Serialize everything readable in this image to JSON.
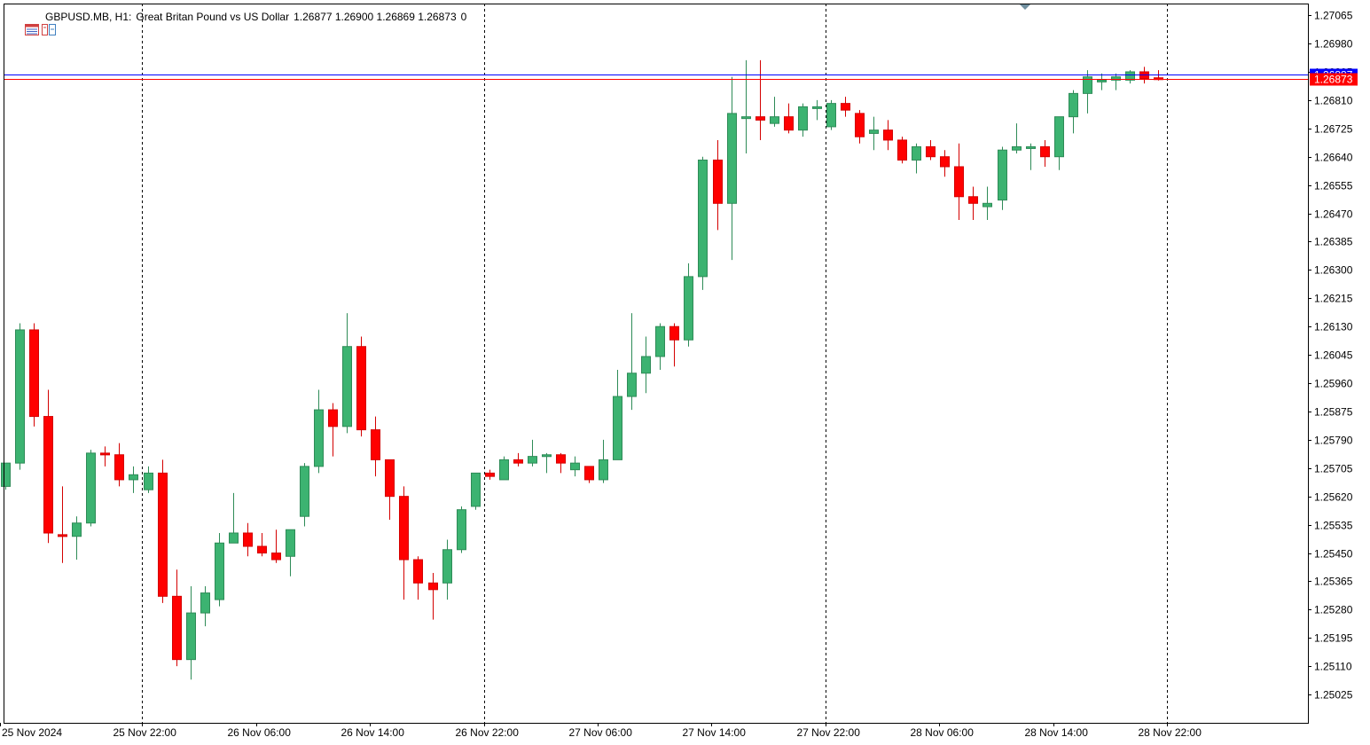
{
  "header": {
    "symbol": "GBPUSD.MB, H1:",
    "description": "Great Britan Pound vs US Dollar",
    "ohlc": "1.26877 1.26900 1.26869 1.26873",
    "volume": "0",
    "icons": [
      "table-icon",
      "chart-switch-icon"
    ]
  },
  "colors": {
    "bull": "#3cb371",
    "bear": "#ff0000",
    "wick_bull": "#2e8b57",
    "wick_bear": "#d40000",
    "ask_line": "#0000ff",
    "bid_line": "#ff0000",
    "grid": "#000000",
    "axis": "#000000"
  },
  "price_labels": {
    "ask": "1.26887",
    "bid": "1.26873"
  },
  "chart_data": {
    "type": "candlestick",
    "ylim": [
      1.2494,
      1.271
    ],
    "y_ticks": [
      "1.27065",
      "1.26980",
      "1.26895",
      "1.26810",
      "1.26725",
      "1.26640",
      "1.26555",
      "1.26470",
      "1.26385",
      "1.26300",
      "1.26215",
      "1.26130",
      "1.26045",
      "1.25960",
      "1.25875",
      "1.25790",
      "1.25705",
      "1.25620",
      "1.25535",
      "1.25450",
      "1.25365",
      "1.25280",
      "1.25195",
      "1.25110",
      "1.25025"
    ],
    "x_labels": [
      {
        "text": "25 Nov 2024",
        "bar": 0
      },
      {
        "text": "25 Nov 22:00",
        "bar": 10
      },
      {
        "text": "26 Nov 06:00",
        "bar": 18
      },
      {
        "text": "26 Nov 14:00",
        "bar": 26
      },
      {
        "text": "26 Nov 22:00",
        "bar": 34
      },
      {
        "text": "27 Nov 06:00",
        "bar": 42
      },
      {
        "text": "27 Nov 14:00",
        "bar": 50
      },
      {
        "text": "27 Nov 22:00",
        "bar": 58
      },
      {
        "text": "28 Nov 06:00",
        "bar": 66
      },
      {
        "text": "28 Nov 14:00",
        "bar": 74
      },
      {
        "text": "28 Nov 22:00",
        "bar": 82
      }
    ],
    "day_separators": [
      10,
      34,
      58,
      82
    ],
    "ask_price": 1.26887,
    "bid_price": 1.26873,
    "candles": [
      {
        "o": 1.2565,
        "h": 1.2572,
        "l": 1.2564,
        "c": 1.2572
      },
      {
        "o": 1.2572,
        "h": 1.2614,
        "l": 1.257,
        "c": 1.2612
      },
      {
        "o": 1.2612,
        "h": 1.2614,
        "l": 1.2583,
        "c": 1.2586
      },
      {
        "o": 1.2586,
        "h": 1.2594,
        "l": 1.2548,
        "c": 1.2551
      },
      {
        "o": 1.25505,
        "h": 1.2565,
        "l": 1.2542,
        "c": 1.255
      },
      {
        "o": 1.255,
        "h": 1.2556,
        "l": 1.2543,
        "c": 1.2554
      },
      {
        "o": 1.2554,
        "h": 1.2576,
        "l": 1.2553,
        "c": 1.2575
      },
      {
        "o": 1.2575,
        "h": 1.2577,
        "l": 1.2571,
        "c": 1.25745
      },
      {
        "o": 1.25745,
        "h": 1.2578,
        "l": 1.2565,
        "c": 1.2567
      },
      {
        "o": 1.2567,
        "h": 1.2571,
        "l": 1.2563,
        "c": 1.25685
      },
      {
        "o": 1.2564,
        "h": 1.2571,
        "l": 1.2563,
        "c": 1.2569
      },
      {
        "o": 1.2569,
        "h": 1.2573,
        "l": 1.253,
        "c": 1.2532
      },
      {
        "o": 1.2532,
        "h": 1.254,
        "l": 1.2511,
        "c": 1.2513
      },
      {
        "o": 1.2513,
        "h": 1.2535,
        "l": 1.2507,
        "c": 1.2527
      },
      {
        "o": 1.2527,
        "h": 1.2535,
        "l": 1.2523,
        "c": 1.2533
      },
      {
        "o": 1.2531,
        "h": 1.2551,
        "l": 1.2529,
        "c": 1.2548
      },
      {
        "o": 1.2548,
        "h": 1.2563,
        "l": 1.2548,
        "c": 1.2551
      },
      {
        "o": 1.2551,
        "h": 1.2554,
        "l": 1.2544,
        "c": 1.2547
      },
      {
        "o": 1.2547,
        "h": 1.2551,
        "l": 1.2544,
        "c": 1.2545
      },
      {
        "o": 1.2545,
        "h": 1.2552,
        "l": 1.2542,
        "c": 1.2543
      },
      {
        "o": 1.2544,
        "h": 1.2552,
        "l": 1.2538,
        "c": 1.2552
      },
      {
        "o": 1.2556,
        "h": 1.2572,
        "l": 1.2553,
        "c": 1.2571
      },
      {
        "o": 1.2571,
        "h": 1.2594,
        "l": 1.2569,
        "c": 1.2588
      },
      {
        "o": 1.2588,
        "h": 1.259,
        "l": 1.2574,
        "c": 1.2583
      },
      {
        "o": 1.2583,
        "h": 1.2617,
        "l": 1.2581,
        "c": 1.2607
      },
      {
        "o": 1.2607,
        "h": 1.261,
        "l": 1.258,
        "c": 1.2582
      },
      {
        "o": 1.2582,
        "h": 1.2586,
        "l": 1.2568,
        "c": 1.2573
      },
      {
        "o": 1.2573,
        "h": 1.2573,
        "l": 1.2555,
        "c": 1.2562
      },
      {
        "o": 1.2562,
        "h": 1.2565,
        "l": 1.2531,
        "c": 1.2543
      },
      {
        "o": 1.2543,
        "h": 1.2544,
        "l": 1.2531,
        "c": 1.2536
      },
      {
        "o": 1.2536,
        "h": 1.2539,
        "l": 1.2525,
        "c": 1.2534
      },
      {
        "o": 1.2536,
        "h": 1.2549,
        "l": 1.2531,
        "c": 1.2546
      },
      {
        "o": 1.2546,
        "h": 1.2559,
        "l": 1.2545,
        "c": 1.2558
      },
      {
        "o": 1.2559,
        "h": 1.2569,
        "l": 1.2558,
        "c": 1.2569
      },
      {
        "o": 1.2569,
        "h": 1.257,
        "l": 1.2567,
        "c": 1.2568
      },
      {
        "o": 1.2567,
        "h": 1.2574,
        "l": 1.2567,
        "c": 1.2573
      },
      {
        "o": 1.2573,
        "h": 1.2575,
        "l": 1.2571,
        "c": 1.2572
      },
      {
        "o": 1.2572,
        "h": 1.2579,
        "l": 1.2571,
        "c": 1.2574
      },
      {
        "o": 1.2574,
        "h": 1.2575,
        "l": 1.2569,
        "c": 1.25745
      },
      {
        "o": 1.25745,
        "h": 1.2575,
        "l": 1.2569,
        "c": 1.2572
      },
      {
        "o": 1.257,
        "h": 1.2574,
        "l": 1.2568,
        "c": 1.2572
      },
      {
        "o": 1.2571,
        "h": 1.2571,
        "l": 1.2566,
        "c": 1.2567
      },
      {
        "o": 1.2567,
        "h": 1.2579,
        "l": 1.2566,
        "c": 1.2573
      },
      {
        "o": 1.2573,
        "h": 1.26,
        "l": 1.2573,
        "c": 1.2592
      },
      {
        "o": 1.2592,
        "h": 1.2617,
        "l": 1.2588,
        "c": 1.2599
      },
      {
        "o": 1.2599,
        "h": 1.261,
        "l": 1.2593,
        "c": 1.2604
      },
      {
        "o": 1.2604,
        "h": 1.2614,
        "l": 1.26,
        "c": 1.2613
      },
      {
        "o": 1.2613,
        "h": 1.2614,
        "l": 1.2601,
        "c": 1.2609
      },
      {
        "o": 1.2609,
        "h": 1.2632,
        "l": 1.2607,
        "c": 1.2628
      },
      {
        "o": 1.2628,
        "h": 1.2664,
        "l": 1.2624,
        "c": 1.2663
      },
      {
        "o": 1.2663,
        "h": 1.2669,
        "l": 1.2642,
        "c": 1.265
      },
      {
        "o": 1.265,
        "h": 1.2688,
        "l": 1.2633,
        "c": 1.2677
      },
      {
        "o": 1.2676,
        "h": 1.2693,
        "l": 1.2665,
        "c": 1.2676
      },
      {
        "o": 1.2676,
        "h": 1.2693,
        "l": 1.2669,
        "c": 1.2675
      },
      {
        "o": 1.2674,
        "h": 1.2682,
        "l": 1.2673,
        "c": 1.2676
      },
      {
        "o": 1.2676,
        "h": 1.268,
        "l": 1.2671,
        "c": 1.2672
      },
      {
        "o": 1.2672,
        "h": 1.268,
        "l": 1.267,
        "c": 1.2679
      },
      {
        "o": 1.2679,
        "h": 1.2681,
        "l": 1.2675,
        "c": 1.2679
      },
      {
        "o": 1.2673,
        "h": 1.2681,
        "l": 1.2672,
        "c": 1.268
      },
      {
        "o": 1.268,
        "h": 1.2682,
        "l": 1.2676,
        "c": 1.2678
      },
      {
        "o": 1.2677,
        "h": 1.2678,
        "l": 1.2668,
        "c": 1.267
      },
      {
        "o": 1.2671,
        "h": 1.2676,
        "l": 1.2666,
        "c": 1.2672
      },
      {
        "o": 1.2672,
        "h": 1.2675,
        "l": 1.2666,
        "c": 1.2669
      },
      {
        "o": 1.2669,
        "h": 1.267,
        "l": 1.2662,
        "c": 1.2663
      },
      {
        "o": 1.2663,
        "h": 1.2668,
        "l": 1.2659,
        "c": 1.2667
      },
      {
        "o": 1.2667,
        "h": 1.2669,
        "l": 1.2663,
        "c": 1.2664
      },
      {
        "o": 1.2664,
        "h": 1.2666,
        "l": 1.2658,
        "c": 1.2661
      },
      {
        "o": 1.2661,
        "h": 1.2668,
        "l": 1.2645,
        "c": 1.2652
      },
      {
        "o": 1.2652,
        "h": 1.2655,
        "l": 1.2645,
        "c": 1.265
      },
      {
        "o": 1.2649,
        "h": 1.2655,
        "l": 1.2645,
        "c": 1.265
      },
      {
        "o": 1.2651,
        "h": 1.2667,
        "l": 1.2648,
        "c": 1.2666
      },
      {
        "o": 1.2666,
        "h": 1.2674,
        "l": 1.2665,
        "c": 1.2667
      },
      {
        "o": 1.2667,
        "h": 1.2668,
        "l": 1.266,
        "c": 1.2667
      },
      {
        "o": 1.2667,
        "h": 1.2669,
        "l": 1.2661,
        "c": 1.2664
      },
      {
        "o": 1.2664,
        "h": 1.2676,
        "l": 1.266,
        "c": 1.2676
      },
      {
        "o": 1.2676,
        "h": 1.2684,
        "l": 1.2671,
        "c": 1.2683
      },
      {
        "o": 1.2683,
        "h": 1.269,
        "l": 1.2677,
        "c": 1.2688
      },
      {
        "o": 1.2687,
        "h": 1.2689,
        "l": 1.2684,
        "c": 1.2687
      },
      {
        "o": 1.2687,
        "h": 1.2689,
        "l": 1.2684,
        "c": 1.2688
      },
      {
        "o": 1.2687,
        "h": 1.269,
        "l": 1.2686,
        "c": 1.26895
      },
      {
        "o": 1.26895,
        "h": 1.2691,
        "l": 1.2686,
        "c": 1.26875
      },
      {
        "o": 1.26877,
        "h": 1.269,
        "l": 1.26869,
        "c": 1.26873
      }
    ]
  }
}
